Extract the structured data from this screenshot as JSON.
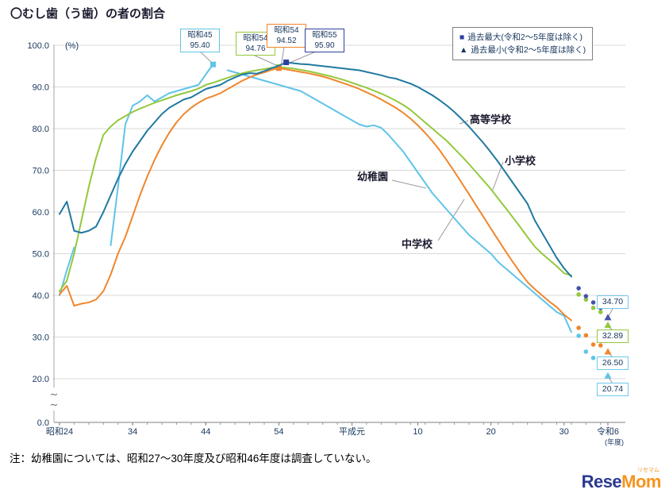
{
  "title": "〇むし歯（う歯）の者の割合",
  "note": "注：幼稚園については、昭和27～30年度及び昭和46年度は調査していない。",
  "legend": {
    "items": [
      {
        "marker": "■",
        "color": "#2e3f9e",
        "label": "過去最大(令和2～5年度は除く)"
      },
      {
        "marker": "▲",
        "color": "#17375e",
        "label": "過去最小(令和2～5年度は除く)"
      }
    ]
  },
  "y_axis": {
    "unit": "(%)",
    "ticks": [
      "100.0",
      "90.0",
      "80.0",
      "70.0",
      "60.0",
      "50.0",
      "40.0",
      "30.0",
      "20.0"
    ],
    "zero": "0.0"
  },
  "x_axis": {
    "unit": "(年度)",
    "labels": [
      {
        "label": "昭和24",
        "year": 1949
      },
      {
        "label": "34",
        "year": 1959
      },
      {
        "label": "44",
        "year": 1969
      },
      {
        "label": "54",
        "year": 1979
      },
      {
        "label": "平成元",
        "year": 1989
      },
      {
        "label": "10",
        "year": 1998
      },
      {
        "label": "20",
        "year": 2008
      },
      {
        "label": "30",
        "year": 2018
      },
      {
        "label": "令和6",
        "year": 2024
      }
    ]
  },
  "logo": {
    "part1": "Rese",
    "part2": "Mom",
    "sub": "リセマム"
  },
  "chart_data": {
    "type": "line",
    "x_start_year": 1949,
    "x_end_year": 2024,
    "y_display_range": [
      20,
      100
    ],
    "grid": true,
    "legend_position": "top-right",
    "series": [
      {
        "key": "kindergarten",
        "name": "幼稚園",
        "color": "#5fc4e8",
        "dot_color": "#5fc4e8",
        "peak_color": "#5fc4e8",
        "peak": {
          "label": "昭和45",
          "value": "95.40",
          "year": 1970
        },
        "end": {
          "label": "20.74",
          "border": "#6fc9e8"
        },
        "line_values": [
          40.0,
          46.0,
          51.5,
          null,
          null,
          null,
          null,
          52.0,
          66.0,
          81.0,
          85.5,
          86.5,
          88.0,
          86.5,
          87.5,
          88.5,
          89.0,
          89.5,
          90.0,
          90.5,
          93.0,
          95.4,
          null,
          94.0,
          93.5,
          93.0,
          92.5,
          92.0,
          91.5,
          91.0,
          90.5,
          90.0,
          89.5,
          89.0,
          88.0,
          87.0,
          86.0,
          85.0,
          84.0,
          83.0,
          82.0,
          81.0,
          80.5,
          80.8,
          80.2,
          78.5,
          76.5,
          74.5,
          72.0,
          69.5,
          67.0,
          64.5,
          62.5,
          60.5,
          58.5,
          56.5,
          54.5,
          53.0,
          51.5,
          50.0,
          48.0,
          46.5,
          45.0,
          43.5,
          42.0,
          40.5,
          39.0,
          37.5,
          36.0,
          35.1,
          31.2
        ],
        "recent": [
          [
            2020,
            30.3
          ],
          [
            2021,
            26.5
          ],
          [
            2022,
            25.0
          ],
          [
            2023,
            23.0
          ]
        ],
        "final": [
          2024,
          20.74
        ]
      },
      {
        "key": "elementary",
        "name": "小学校",
        "color": "#94c83d",
        "dot_color": "#94c83d",
        "peak_color": "#94c83d",
        "peak": {
          "label": "昭和54",
          "value": "94.76",
          "year": 1979
        },
        "end": {
          "label": "32.89",
          "border": "#94c83d"
        },
        "line_values": [
          41.0,
          43.5,
          50.0,
          58.0,
          66.0,
          73.0,
          78.5,
          80.5,
          82.0,
          83.0,
          84.0,
          84.8,
          85.5,
          86.2,
          86.8,
          87.4,
          88.0,
          88.5,
          89.0,
          89.6,
          90.5,
          91.0,
          91.6,
          92.2,
          92.8,
          93.3,
          93.7,
          94.0,
          94.3,
          94.6,
          94.76,
          94.6,
          94.4,
          94.1,
          93.8,
          93.4,
          93.0,
          92.6,
          92.1,
          91.6,
          91.0,
          90.4,
          89.8,
          89.1,
          88.4,
          87.6,
          86.7,
          85.7,
          84.5,
          83.0,
          81.5,
          80.0,
          78.5,
          77.0,
          75.2,
          73.4,
          71.5,
          69.5,
          67.5,
          65.5,
          63.2,
          61.0,
          58.7,
          56.4,
          54.0,
          51.7,
          50.0,
          48.5,
          47.0,
          45.3,
          44.8
        ],
        "recent": [
          [
            2020,
            40.2
          ],
          [
            2021,
            39.0
          ],
          [
            2022,
            37.0
          ],
          [
            2023,
            36.0
          ]
        ],
        "final": [
          2024,
          32.89
        ]
      },
      {
        "key": "junior-high",
        "name": "中学校",
        "color": "#f0862c",
        "dot_color": "#f0862c",
        "peak_color": "#f0862c",
        "peak": {
          "label": "昭和54",
          "value": "94.52",
          "year": 1979
        },
        "end": {
          "label": "26.50",
          "border": "#6fc9e8"
        },
        "line_values": [
          40.2,
          42.3,
          37.5,
          38.0,
          38.3,
          39.0,
          41.0,
          45.0,
          50.0,
          54.0,
          59.0,
          64.0,
          68.5,
          72.5,
          76.0,
          79.0,
          81.5,
          83.5,
          85.0,
          86.2,
          87.2,
          87.8,
          88.5,
          89.5,
          90.5,
          91.5,
          92.3,
          93.0,
          93.5,
          94.1,
          94.52,
          94.2,
          93.9,
          93.6,
          93.3,
          92.9,
          92.5,
          92.0,
          91.4,
          90.8,
          90.2,
          89.5,
          88.7,
          87.9,
          87.0,
          86.0,
          85.0,
          83.8,
          82.4,
          80.8,
          79.0,
          77.0,
          74.8,
          72.3,
          69.7,
          67.0,
          64.3,
          61.5,
          58.8,
          56.0,
          53.3,
          50.6,
          48.0,
          45.5,
          43.2,
          41.5,
          40.0,
          38.5,
          37.2,
          35.4,
          34.0
        ],
        "recent": [
          [
            2020,
            32.2
          ],
          [
            2021,
            30.4
          ],
          [
            2022,
            28.2
          ],
          [
            2023,
            28.0
          ]
        ],
        "final": [
          2024,
          26.5
        ]
      },
      {
        "key": "high-school",
        "name": "高等学校",
        "color": "#2079a0",
        "dot_color": "#4753a8",
        "peak_color": "#2e3f9e",
        "peak": {
          "label": "昭和55",
          "value": "95.90",
          "year": 1980
        },
        "end": {
          "label": "34.70",
          "border": "#6fc9e8"
        },
        "line_values": [
          59.5,
          62.5,
          55.5,
          55.0,
          55.5,
          56.5,
          60.0,
          64.0,
          68.0,
          71.5,
          74.5,
          77.0,
          79.5,
          81.5,
          83.5,
          85.0,
          86.0,
          87.0,
          87.5,
          88.5,
          89.5,
          90.0,
          90.5,
          91.5,
          92.3,
          93.0,
          93.3,
          93.2,
          93.8,
          94.5,
          95.1,
          95.9,
          95.7,
          95.5,
          95.4,
          95.2,
          95.0,
          94.8,
          94.6,
          94.4,
          94.2,
          94.0,
          93.6,
          93.2,
          92.8,
          92.3,
          92.0,
          91.4,
          90.8,
          90.0,
          89.0,
          88.0,
          86.8,
          85.5,
          84.0,
          82.3,
          80.5,
          78.5,
          76.5,
          74.3,
          72.0,
          69.5,
          67.0,
          64.5,
          62.0,
          58.0,
          55.0,
          52.0,
          49.0,
          46.5,
          44.5
        ],
        "recent": [
          [
            2020,
            41.7
          ],
          [
            2021,
            39.8
          ],
          [
            2022,
            38.3
          ],
          [
            2023,
            37.0
          ]
        ],
        "final": [
          2024,
          34.7
        ]
      }
    ]
  }
}
